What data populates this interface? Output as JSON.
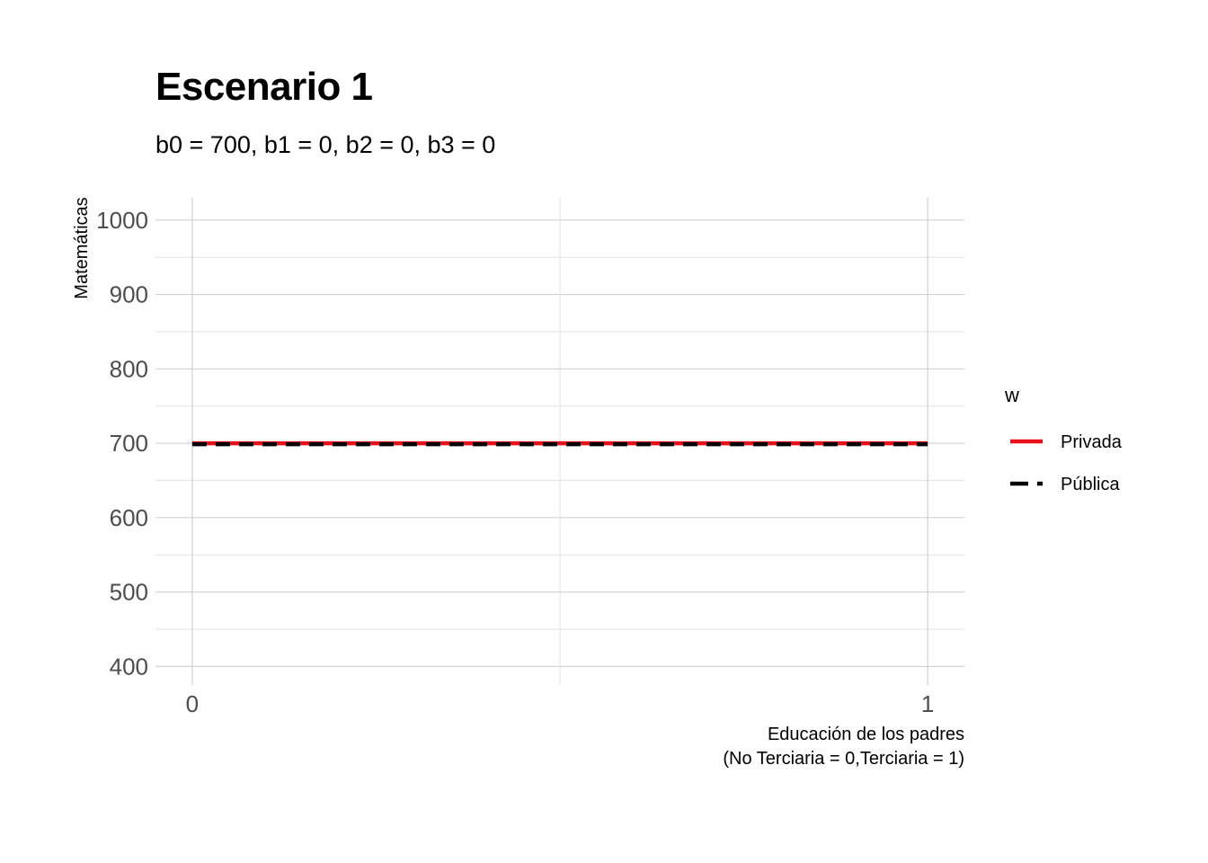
{
  "chart_data": {
    "type": "line",
    "title": "Escenario 1",
    "subtitle": "b0 = 700, b1 = 0, b2 = 0, b3 = 0",
    "xlabel_lines": [
      "Educación de los padres",
      "(No Terciaria = 0,Terciaria = 1)"
    ],
    "ylabel": "Matemáticas",
    "x": [
      0,
      1
    ],
    "x_ticks": [
      0,
      1
    ],
    "x_tick_labels": [
      "0",
      "1"
    ],
    "xlim": [
      -0.05,
      1.05
    ],
    "y_ticks": [
      400,
      500,
      600,
      700,
      800,
      900,
      1000
    ],
    "y_tick_labels": [
      "400",
      "500",
      "600",
      "700",
      "800",
      "900",
      "1000"
    ],
    "ylim": [
      375,
      1030
    ],
    "grid": true,
    "legend_title": "w",
    "legend_position": "right",
    "series": [
      {
        "name": "Privada",
        "values": [
          700,
          700
        ],
        "color": "#e8101a",
        "dash": "solid"
      },
      {
        "name": "Pública",
        "values": [
          700,
          700
        ],
        "color": "#000000",
        "dash": "dashed"
      }
    ]
  }
}
